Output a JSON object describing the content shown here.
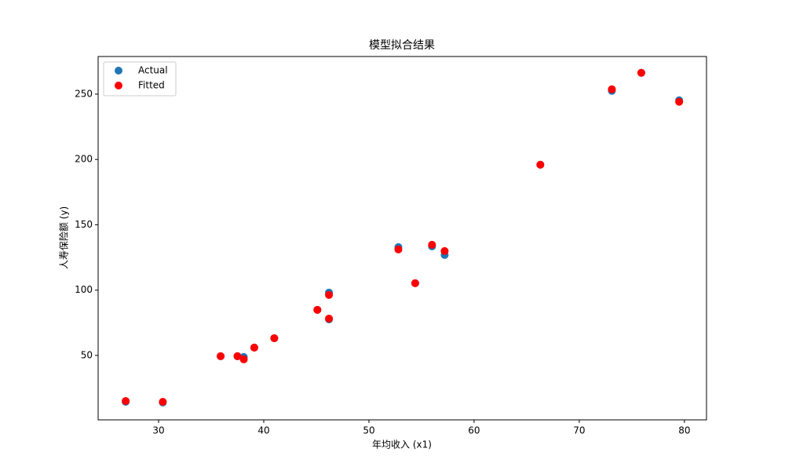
{
  "chart_data": {
    "type": "scatter",
    "title": "模型拟合结果",
    "x_label": "年均收入 (x1)",
    "y_label": "人寿保险额 (y)",
    "x": [
      26.87,
      30.4,
      35.9,
      37.5,
      38.1,
      39.1,
      41.0,
      45.1,
      46.2,
      46.2,
      52.8,
      54.4,
      56.0,
      57.2,
      66.3,
      73.1,
      75.9,
      79.5
    ],
    "series": [
      {
        "name": "Actual",
        "color": "#1f77b4",
        "values": [
          14.5,
          14.0,
          49.4,
          49.4,
          48.8,
          56.0,
          63.2,
          84.9,
          98.1,
          77.6,
          132.9,
          105.3,
          133.5,
          126.9,
          196.0,
          252.5,
          266.3,
          245.3
        ]
      },
      {
        "name": "Fitted",
        "color": "#ff0000",
        "values": [
          15.1,
          14.5,
          49.4,
          49.4,
          47.0,
          56.0,
          63.2,
          84.9,
          96.3,
          78.2,
          131.1,
          105.3,
          134.7,
          129.9,
          196.0,
          253.7,
          266.3,
          244.1
        ]
      }
    ],
    "xlim": [
      24.25,
      82.1
    ],
    "xticks": [
      30,
      40,
      50,
      60,
      70,
      80
    ],
    "ylim": [
      0.7,
      278.8
    ],
    "yticks": [
      50,
      100,
      150,
      200,
      250
    ],
    "legend": "upper-left"
  }
}
